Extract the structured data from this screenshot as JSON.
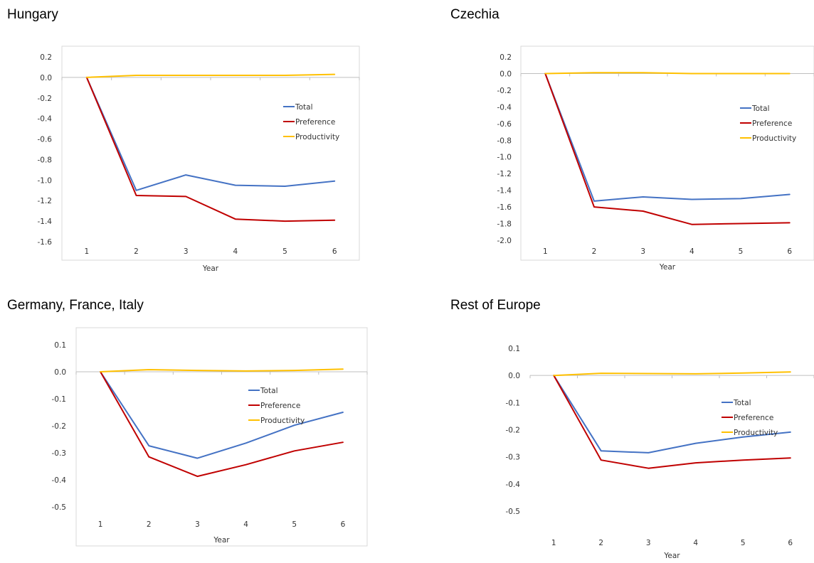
{
  "titles": [
    "Hungary",
    "Czechia",
    "Germany, France, Italy",
    "Rest of Europe"
  ],
  "colors": {
    "total": "#4472C4",
    "preference": "#C00000",
    "productivity": "#FFC000",
    "axis": "#bfbfbf",
    "frame": "#d9d9d9"
  },
  "chart_data": [
    {
      "type": "line",
      "title": "Hungary",
      "xlabel": "Year",
      "ylabel": "",
      "x": [
        1,
        2,
        3,
        4,
        5,
        6
      ],
      "ylim": [
        -1.6,
        0.2
      ],
      "yticks": [
        0.2,
        0.0,
        -0.2,
        -0.4,
        -0.6,
        -0.8,
        -1.0,
        -1.2,
        -1.4,
        -1.6
      ],
      "ytick_labels": [
        "0.2",
        "0.0",
        "-0.2",
        "-0.4",
        "-0.6",
        "-0.8",
        "-1.0",
        "-1.2",
        "-1.4",
        "-1.6"
      ],
      "legend_position": "right",
      "frame": true,
      "series": [
        {
          "name": "Total",
          "values": [
            0.0,
            -1.1,
            -0.95,
            -1.05,
            -1.06,
            -1.01
          ]
        },
        {
          "name": "Preference",
          "values": [
            0.0,
            -1.15,
            -1.16,
            -1.38,
            -1.4,
            -1.39
          ]
        },
        {
          "name": "Productivity",
          "values": [
            0.0,
            0.02,
            0.02,
            0.02,
            0.02,
            0.03
          ]
        }
      ]
    },
    {
      "type": "line",
      "title": "Czechia",
      "xlabel": "Year",
      "ylabel": "",
      "x": [
        1,
        2,
        3,
        4,
        5,
        6
      ],
      "ylim": [
        -2.0,
        0.2
      ],
      "yticks": [
        0.2,
        0.0,
        -0.2,
        -0.4,
        -0.6,
        -0.8,
        -1.0,
        -1.2,
        -1.4,
        -1.6,
        -1.8,
        -2.0
      ],
      "ytick_labels": [
        "0.2",
        "0.0",
        "-0.2",
        "-0.4",
        "-0.6",
        "-0.8",
        "-1.0",
        "-1.2",
        "-1.4",
        "-1.6",
        "-1.8",
        "-2.0"
      ],
      "legend_position": "right",
      "frame": true,
      "series": [
        {
          "name": "Total",
          "values": [
            0.0,
            -1.53,
            -1.48,
            -1.51,
            -1.5,
            -1.45
          ]
        },
        {
          "name": "Preference",
          "values": [
            0.0,
            -1.6,
            -1.65,
            -1.81,
            -1.8,
            -1.79
          ]
        },
        {
          "name": "Productivity",
          "values": [
            0.0,
            0.01,
            0.01,
            0.0,
            0.0,
            0.0
          ]
        }
      ]
    },
    {
      "type": "line",
      "title": "Germany, France, Italy",
      "xlabel": "Year",
      "ylabel": "",
      "x": [
        1,
        2,
        3,
        4,
        5,
        6
      ],
      "ylim": [
        -0.5,
        0.1
      ],
      "yticks": [
        0.1,
        0.0,
        -0.1,
        -0.2,
        -0.3,
        -0.4,
        -0.5
      ],
      "ytick_labels": [
        "0.1",
        "0.0",
        "-0.1",
        "-0.2",
        "-0.3",
        "-0.4",
        "-0.5"
      ],
      "legend_position": "right",
      "frame": true,
      "series": [
        {
          "name": "Total",
          "values": [
            0.0,
            -0.274,
            -0.32,
            -0.264,
            -0.198,
            -0.15
          ]
        },
        {
          "name": "Preference",
          "values": [
            0.0,
            -0.315,
            -0.387,
            -0.344,
            -0.293,
            -0.261
          ]
        },
        {
          "name": "Productivity",
          "values": [
            0.0,
            0.008,
            0.005,
            0.003,
            0.005,
            0.01
          ]
        }
      ]
    },
    {
      "type": "line",
      "title": "Rest of Europe",
      "xlabel": "Year",
      "ylabel": "",
      "x": [
        1,
        2,
        3,
        4,
        5,
        6
      ],
      "ylim": [
        -0.5,
        0.1
      ],
      "yticks": [
        0.1,
        0.0,
        -0.1,
        -0.2,
        -0.3,
        -0.4,
        -0.5
      ],
      "ytick_labels": [
        "0.1",
        "0.0",
        "-0.1",
        "-0.2",
        "-0.3",
        "-0.4",
        "-0.5"
      ],
      "legend_position": "right",
      "frame": false,
      "series": [
        {
          "name": "Total",
          "values": [
            0.0,
            -0.278,
            -0.285,
            -0.25,
            -0.227,
            -0.209
          ]
        },
        {
          "name": "Preference",
          "values": [
            0.0,
            -0.312,
            -0.342,
            -0.322,
            -0.312,
            -0.304
          ]
        },
        {
          "name": "Productivity",
          "values": [
            0.0,
            0.008,
            0.007,
            0.006,
            0.009,
            0.013
          ]
        }
      ]
    }
  ]
}
